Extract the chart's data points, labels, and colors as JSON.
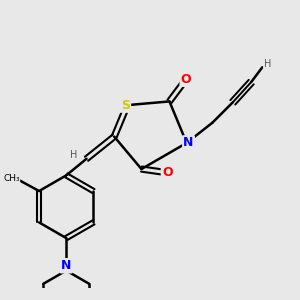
{
  "background_color": "#e8e8e8",
  "atom_colors": {
    "S": "#cccc00",
    "N": "#0000ff",
    "O": "#ff0000",
    "C": "#000000",
    "H": "#555555"
  },
  "bond_color": "#000000",
  "font_size_atom": 9,
  "font_size_H": 7
}
